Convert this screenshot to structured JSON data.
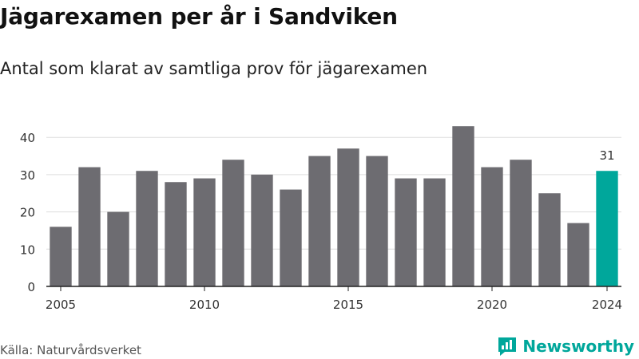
{
  "header": {
    "title": "Jägarexamen per år i Sandviken",
    "subtitle": "Antal som klarat av samtliga prov för jägarexamen"
  },
  "footer": {
    "source": "Källa: Naturvårdsverket",
    "brand": "Newsworthy",
    "brand_icon": "newsworthy-chart-icon"
  },
  "colors": {
    "bar": "#6d6c71",
    "highlight": "#00a79b",
    "grid": "#dddddd",
    "axis": "#222222",
    "text": "#333333"
  },
  "chart_data": {
    "type": "bar",
    "title": "Jägarexamen per år i Sandviken",
    "subtitle": "Antal som klarat av samtliga prov för jägarexamen",
    "xlabel": "",
    "ylabel": "",
    "categories": [
      2005,
      2006,
      2007,
      2008,
      2009,
      2010,
      2011,
      2012,
      2013,
      2014,
      2015,
      2016,
      2017,
      2018,
      2019,
      2020,
      2021,
      2022,
      2023,
      2024
    ],
    "values": [
      16,
      32,
      20,
      31,
      28,
      29,
      34,
      30,
      26,
      35,
      37,
      35,
      29,
      29,
      43,
      32,
      34,
      25,
      17,
      31
    ],
    "highlight_category": 2024,
    "highlight_label": "31",
    "x_ticks": [
      "2005",
      "2010",
      "2015",
      "2020",
      "2024"
    ],
    "y_ticks": [
      0,
      10,
      20,
      30,
      40
    ],
    "ylim": [
      0,
      45
    ],
    "grid": true,
    "legend": "none"
  }
}
